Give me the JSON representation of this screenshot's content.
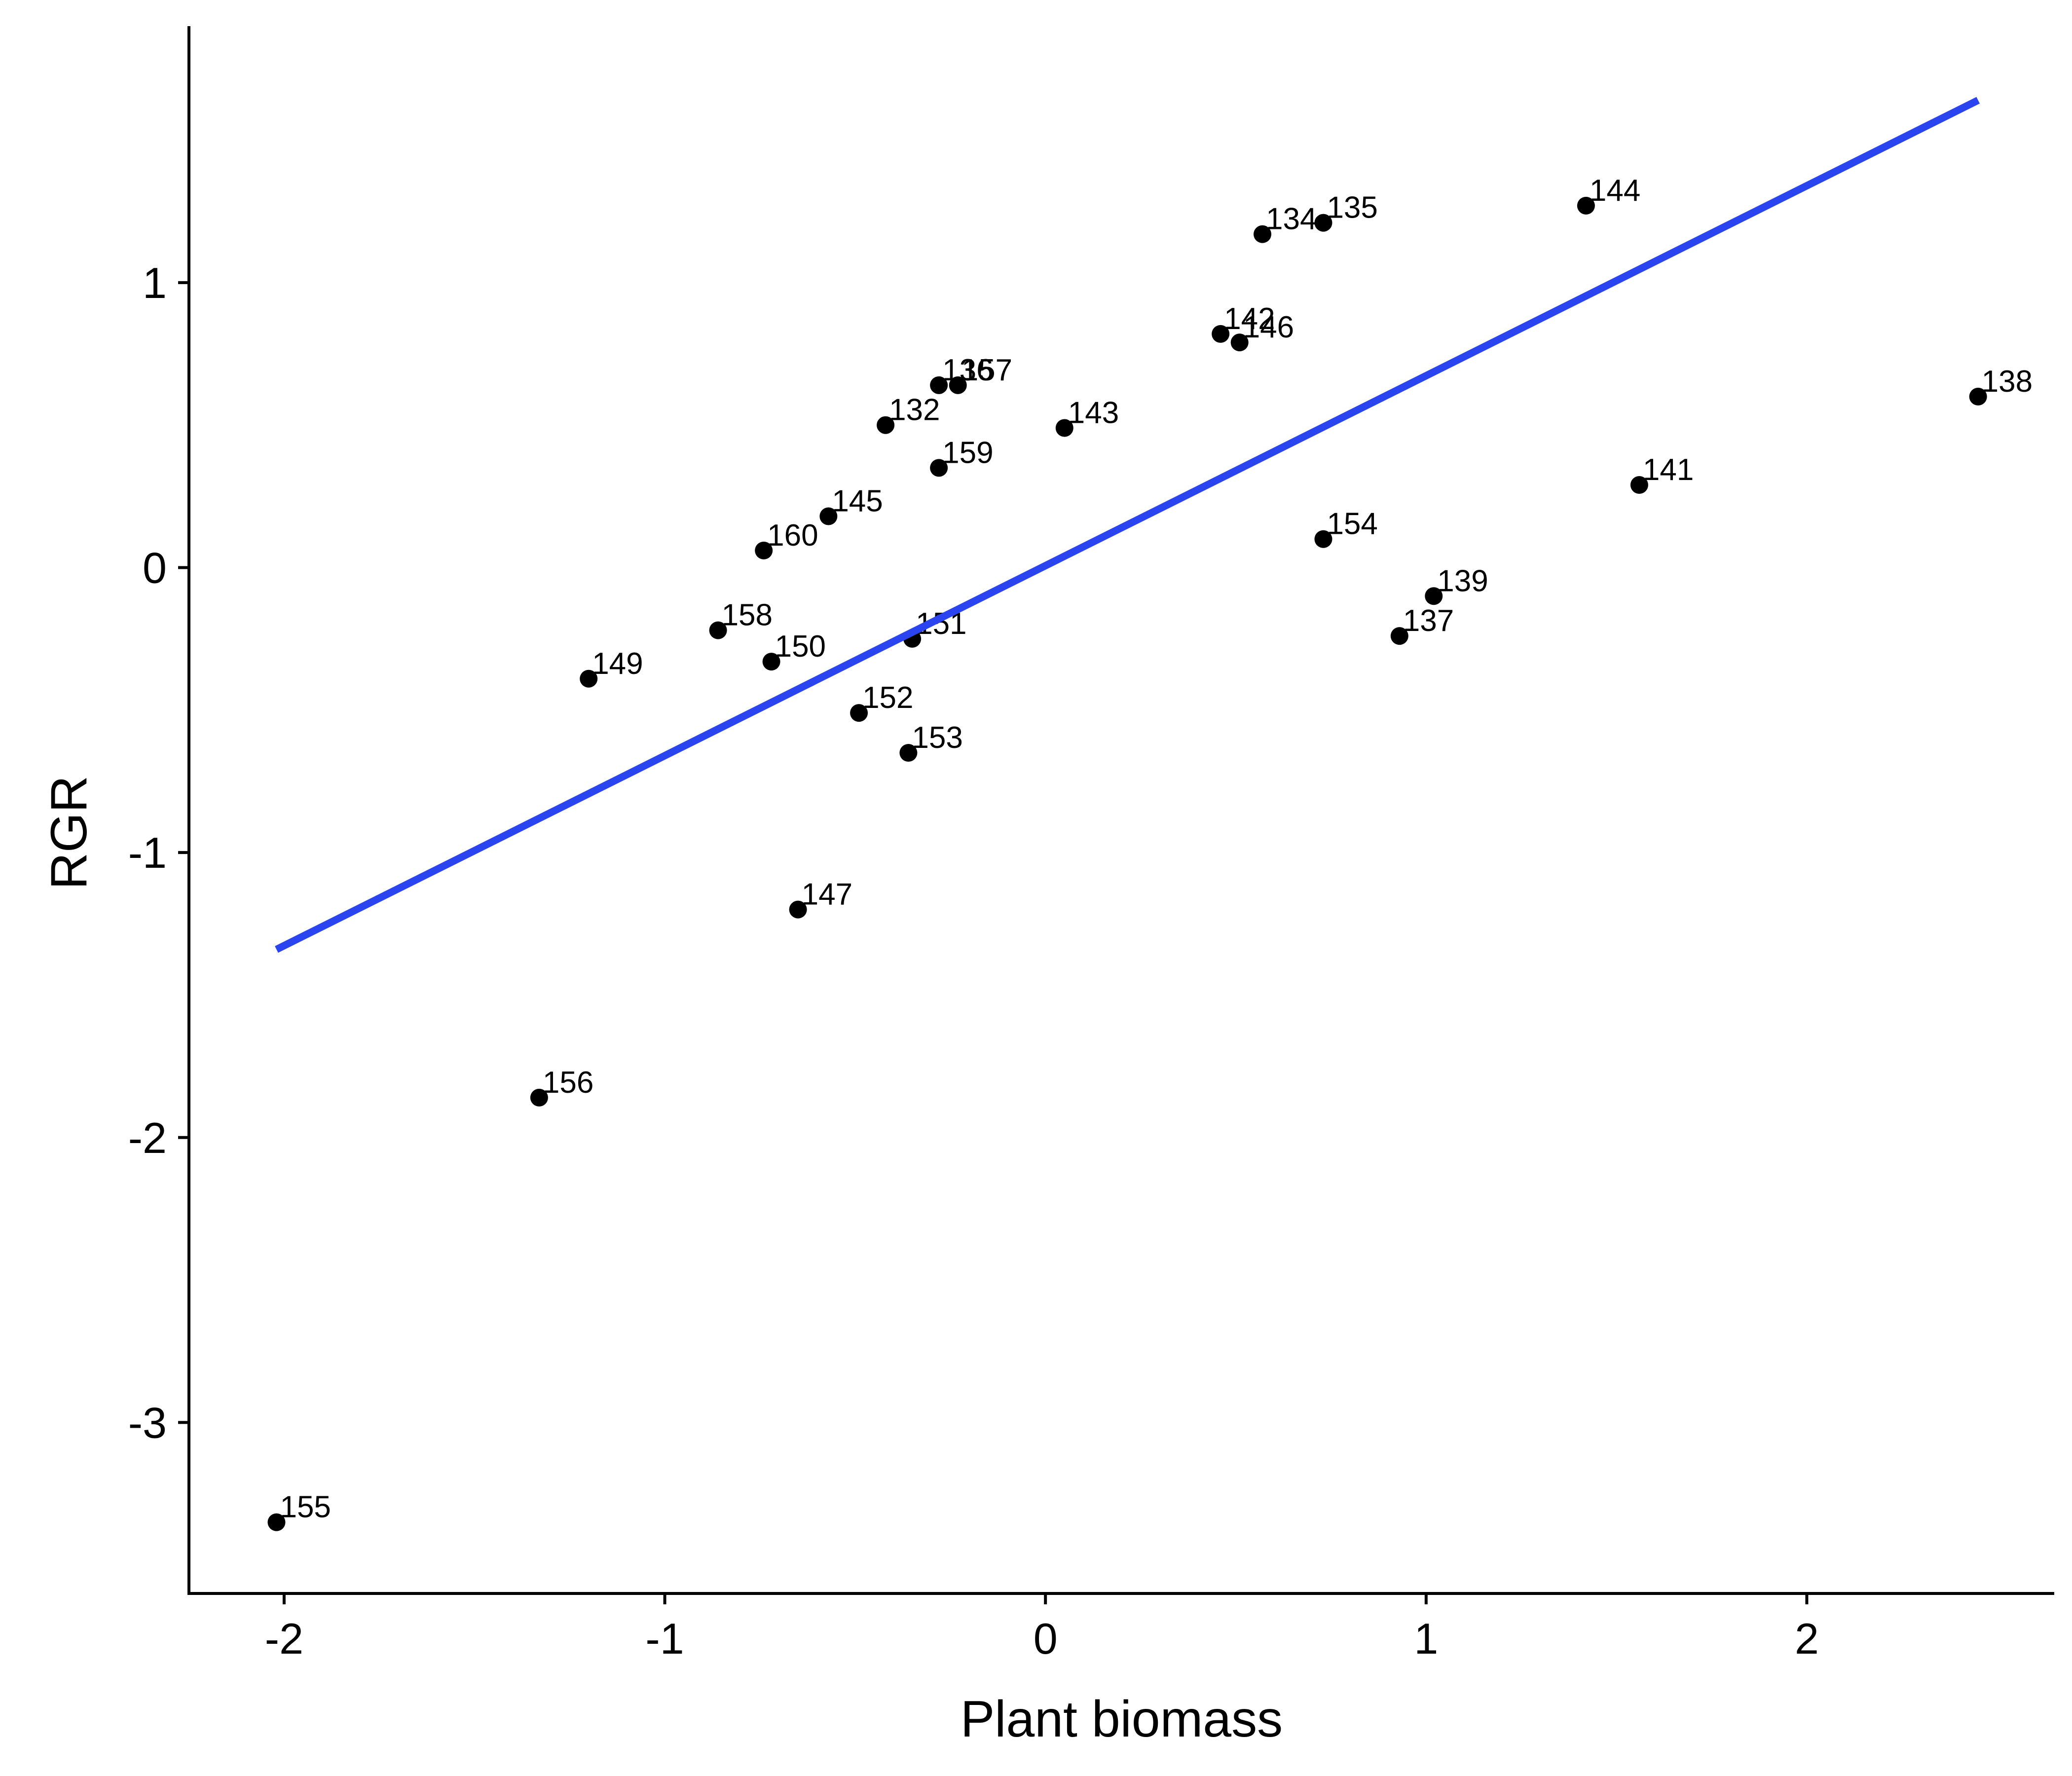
{
  "chart_data": {
    "type": "scatter",
    "title": "",
    "xlabel": "Plant biomass",
    "ylabel": "RGR",
    "xlim": [
      -2.25,
      2.65
    ],
    "ylim": [
      -3.6,
      1.9
    ],
    "xticks": [
      -2,
      -1,
      0,
      1,
      2
    ],
    "yticks": [
      -3,
      -2,
      -1,
      0,
      1
    ],
    "xtick_labels": [
      "-2",
      "-1",
      "0",
      "1",
      "2"
    ],
    "ytick_labels": [
      "-3",
      "-2",
      "-1",
      "0",
      "1"
    ],
    "grid": false,
    "legend": "none",
    "point_color": "#000000",
    "line_color": "#2a45f0",
    "points": [
      {
        "label": "155",
        "x": -2.02,
        "y": -3.35
      },
      {
        "label": "156",
        "x": -1.33,
        "y": -1.86
      },
      {
        "label": "149",
        "x": -1.2,
        "y": -0.39
      },
      {
        "label": "158",
        "x": -0.86,
        "y": -0.22
      },
      {
        "label": "150",
        "x": -0.72,
        "y": -0.33
      },
      {
        "label": "160",
        "x": -0.74,
        "y": 0.06
      },
      {
        "label": "147",
        "x": -0.65,
        "y": -1.2
      },
      {
        "label": "145",
        "x": -0.57,
        "y": 0.18
      },
      {
        "label": "152",
        "x": -0.49,
        "y": -0.51
      },
      {
        "label": "132",
        "x": -0.42,
        "y": 0.5
      },
      {
        "label": "153",
        "x": -0.36,
        "y": -0.65
      },
      {
        "label": "151",
        "x": -0.35,
        "y": -0.25
      },
      {
        "label": "136",
        "x": -0.28,
        "y": 0.64
      },
      {
        "label": "159",
        "x": -0.28,
        "y": 0.35
      },
      {
        "label": "157",
        "x": -0.23,
        "y": 0.64
      },
      {
        "label": "143",
        "x": 0.05,
        "y": 0.49
      },
      {
        "label": "142",
        "x": 0.46,
        "y": 0.82
      },
      {
        "label": "146",
        "x": 0.51,
        "y": 0.79
      },
      {
        "label": "134",
        "x": 0.57,
        "y": 1.17
      },
      {
        "label": "135",
        "x": 0.73,
        "y": 1.21
      },
      {
        "label": "154",
        "x": 0.73,
        "y": 0.1
      },
      {
        "label": "137",
        "x": 0.93,
        "y": -0.24
      },
      {
        "label": "139",
        "x": 1.02,
        "y": -0.1
      },
      {
        "label": "144",
        "x": 1.42,
        "y": 1.27
      },
      {
        "label": "141",
        "x": 1.56,
        "y": 0.29
      },
      {
        "label": "138",
        "x": 2.45,
        "y": 0.6
      }
    ],
    "fit_line": {
      "x": [
        -2.02,
        2.45
      ],
      "y": [
        -1.34,
        1.64
      ]
    }
  }
}
